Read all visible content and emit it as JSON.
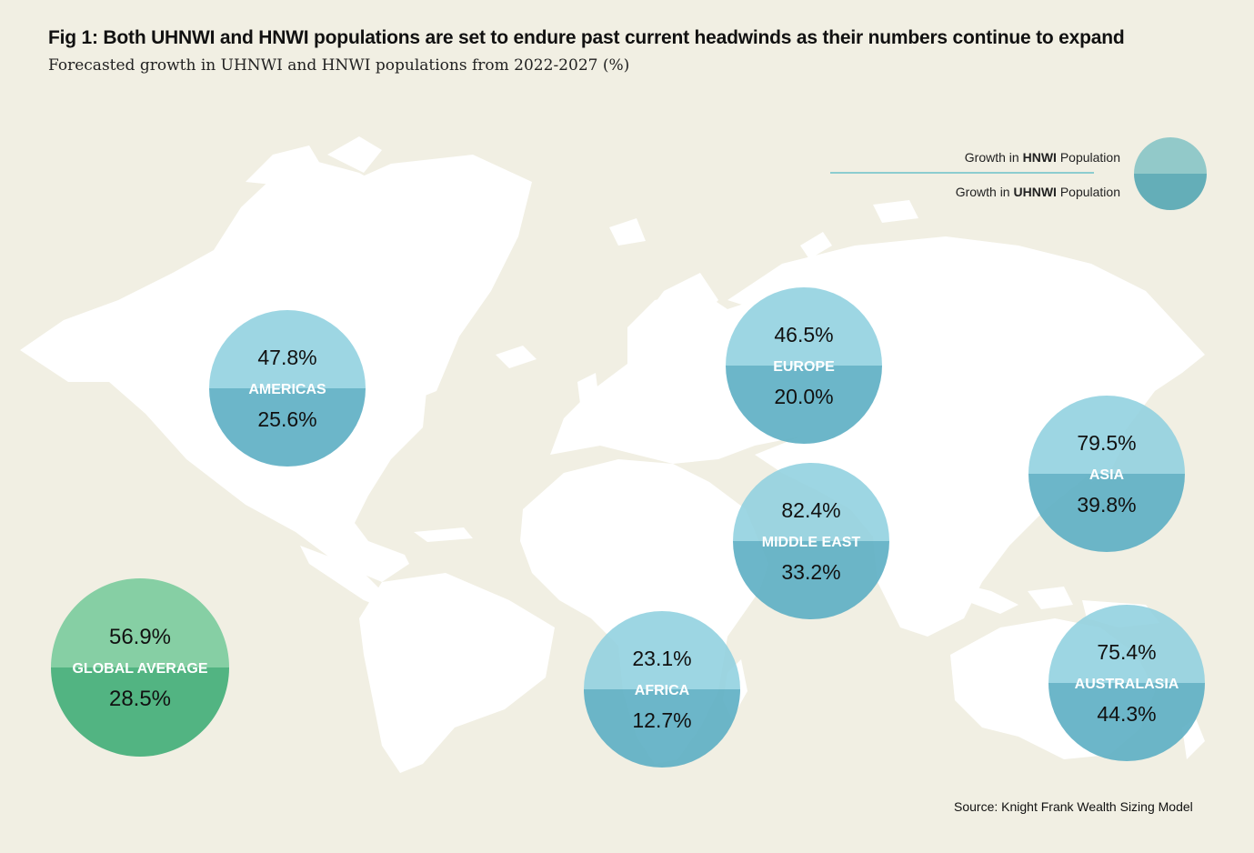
{
  "chart_data": {
    "type": "bubble-map",
    "title": "Fig 1: Both UHNWI and HNWI populations are set to endure past current headwinds as their numbers continue to expand",
    "subtitle": "Forecasted growth in UHNWI and HNWI populations from 2022-2027 (%)",
    "source": "Source: Knight Frank Wealth Sizing Model",
    "legend": {
      "hnwi": {
        "prefix": "Growth in ",
        "bold": "HNWI",
        "suffix": " Population"
      },
      "uhnwi": {
        "prefix": "Growth in ",
        "bold": "UHNWI",
        "suffix": " Population"
      }
    },
    "series": [
      {
        "region": "AMERICAS",
        "hnwi": 47.8,
        "uhnwi": 25.6,
        "hnwi_label": "47.8%",
        "uhnwi_label": "25.6%"
      },
      {
        "region": "EUROPE",
        "hnwi": 46.5,
        "uhnwi": 20.0,
        "hnwi_label": "46.5%",
        "uhnwi_label": "20.0%"
      },
      {
        "region": "ASIA",
        "hnwi": 79.5,
        "uhnwi": 39.8,
        "hnwi_label": "79.5%",
        "uhnwi_label": "39.8%"
      },
      {
        "region": "MIDDLE EAST",
        "hnwi": 82.4,
        "uhnwi": 33.2,
        "hnwi_label": "82.4%",
        "uhnwi_label": "33.2%"
      },
      {
        "region": "AFRICA",
        "hnwi": 23.1,
        "uhnwi": 12.7,
        "hnwi_label": "23.1%",
        "uhnwi_label": "12.7%"
      },
      {
        "region": "AUSTRALASIA",
        "hnwi": 75.4,
        "uhnwi": 44.3,
        "hnwi_label": "75.4%",
        "uhnwi_label": "44.3%"
      },
      {
        "region": "GLOBAL AVERAGE",
        "hnwi": 56.9,
        "uhnwi": 28.5,
        "hnwi_label": "56.9%",
        "uhnwi_label": "28.5%"
      }
    ]
  },
  "colors": {
    "background": "#f1efe3",
    "land": "#ffffff",
    "hnwi_fill": "#8fd0df",
    "uhnwi_fill": "#5fb0c4",
    "global_hnwi_fill": "#86cfa4",
    "global_uhnwi_fill": "#52b482"
  }
}
